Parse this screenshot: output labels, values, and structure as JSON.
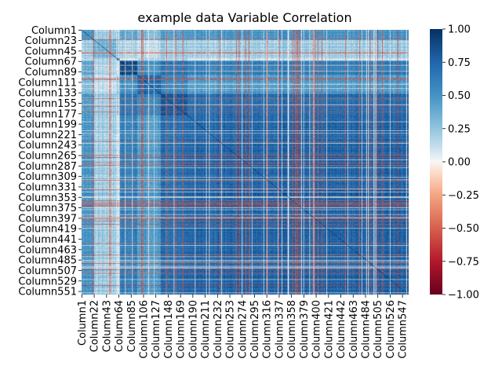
{
  "chart_data": {
    "type": "heatmap",
    "title": "example data Variable Correlation",
    "xlabel": "",
    "ylabel": "",
    "matrix_size": 557,
    "row_labels": [
      "Column1",
      "Column23",
      "Column45",
      "Column67",
      "Column89",
      "Column111",
      "Column133",
      "Column155",
      "Column177",
      "Column199",
      "Column221",
      "Column243",
      "Column265",
      "Column287",
      "Column309",
      "Column331",
      "Column353",
      "Column375",
      "Column397",
      "Column419",
      "Column441",
      "Column463",
      "Column485",
      "Column507",
      "Column529",
      "Column551"
    ],
    "col_labels": [
      "Column1",
      "Column22",
      "Column43",
      "Column64",
      "Column85",
      "Column106",
      "Column127",
      "Column148",
      "Column169",
      "Column190",
      "Column211",
      "Column232",
      "Column253",
      "Column274",
      "Column295",
      "Column316",
      "Column337",
      "Column358",
      "Column379",
      "Column400",
      "Column421",
      "Column442",
      "Column463",
      "Column484",
      "Column505",
      "Column526",
      "Column547"
    ],
    "colorbar": {
      "min": -1.0,
      "max": 1.0,
      "ticks": [
        "1.00",
        "0.75",
        "0.50",
        "0.25",
        "0.00",
        "−0.25",
        "−0.50",
        "−0.75",
        "−1.00"
      ],
      "tick_values": [
        1.0,
        0.75,
        0.5,
        0.25,
        0.0,
        -0.25,
        -0.5,
        -0.75,
        -1.0
      ],
      "colormap": "RdBu",
      "low_color": "#67001f",
      "mid_color": "#f7f7f7",
      "high_color": "#053061"
    },
    "diagonal_value": 1.0
  }
}
